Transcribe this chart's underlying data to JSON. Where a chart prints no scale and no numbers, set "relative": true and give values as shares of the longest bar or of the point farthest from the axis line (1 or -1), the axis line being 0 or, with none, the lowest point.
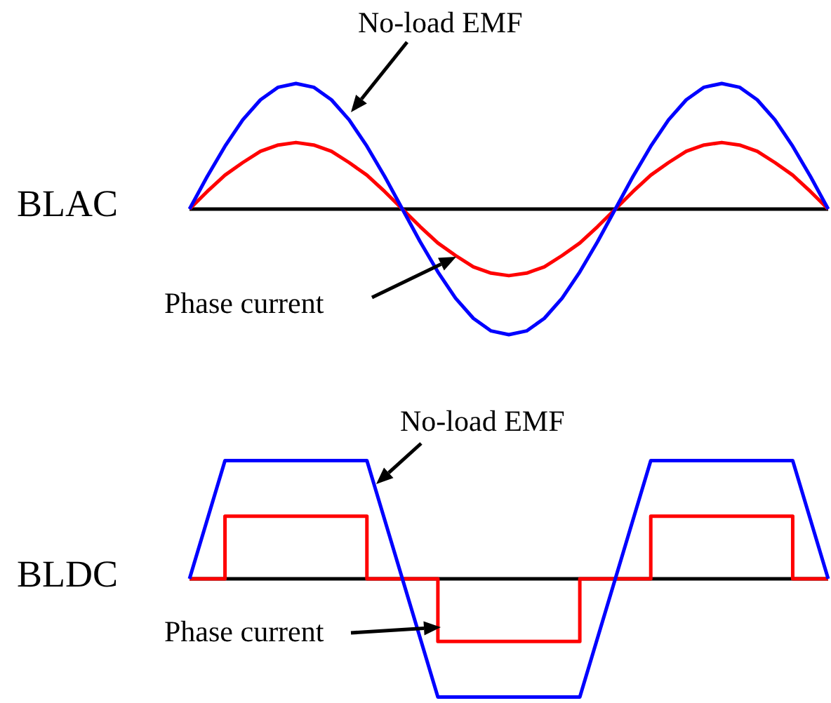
{
  "chart_data": [
    {
      "type": "line",
      "ylabel": "BLAC",
      "relative": true,
      "legend": false,
      "marker": "none",
      "categories": [
        null,
        null,
        null,
        null,
        null,
        null,
        null,
        null,
        null,
        null,
        null,
        null,
        null,
        null,
        null,
        null,
        null,
        null,
        null,
        null,
        null,
        null,
        null,
        null,
        null,
        null,
        null,
        null,
        null,
        null,
        null,
        null,
        null,
        null,
        null,
        null,
        null
      ],
      "series": [
        {
          "color": "#0000ff",
          "values": [
            0,
            0.26,
            0.5,
            0.71,
            0.87,
            0.97,
            1,
            0.97,
            0.87,
            0.71,
            0.5,
            0.26,
            0,
            -0.26,
            -0.5,
            -0.71,
            -0.87,
            -0.97,
            -1,
            -0.97,
            -0.87,
            -0.71,
            -0.5,
            -0.26,
            0,
            0.26,
            0.5,
            0.71,
            0.87,
            0.97,
            1,
            0.97,
            0.87,
            0.71,
            0.5,
            0.26,
            0
          ]
        },
        {
          "color": "#ff0000",
          "values": [
            0,
            0.14,
            0.27,
            0.37,
            0.46,
            0.51,
            0.53,
            0.51,
            0.46,
            0.37,
            0.27,
            0.14,
            0,
            -0.14,
            -0.27,
            -0.37,
            -0.46,
            -0.51,
            -0.53,
            -0.51,
            -0.46,
            -0.37,
            -0.27,
            -0.14,
            0,
            0.14,
            0.27,
            0.37,
            0.46,
            0.51,
            0.53,
            0.51,
            0.46,
            0.37,
            0.27,
            0.14,
            0
          ]
        }
      ],
      "annotations": [
        "No-load EMF",
        "Phase current"
      ]
    },
    {
      "type": "line",
      "ylabel": "BLDC",
      "relative": true,
      "legend": false,
      "marker": "none",
      "categories": [
        null,
        null,
        null,
        null,
        null,
        null,
        null,
        null,
        null,
        null,
        null,
        null,
        null,
        null,
        null,
        null,
        null,
        null,
        null
      ],
      "series": [
        {
          "color": "#0000ff",
          "values": [
            0,
            1,
            1,
            1,
            1,
            1,
            0,
            -1,
            -1,
            -1,
            -1,
            -1,
            0,
            1,
            1,
            1,
            1,
            1,
            0
          ]
        },
        {
          "type": "step",
          "color": "#ff0000",
          "values": [
            0,
            0.53,
            0.53,
            0.53,
            0.53,
            0,
            0,
            -0.53,
            -0.53,
            -0.53,
            -0.53,
            0,
            0,
            0.53,
            0.53,
            0.53,
            0.53,
            0,
            0
          ]
        }
      ],
      "annotations": [
        "No-load EMF",
        "Phase current"
      ]
    }
  ]
}
